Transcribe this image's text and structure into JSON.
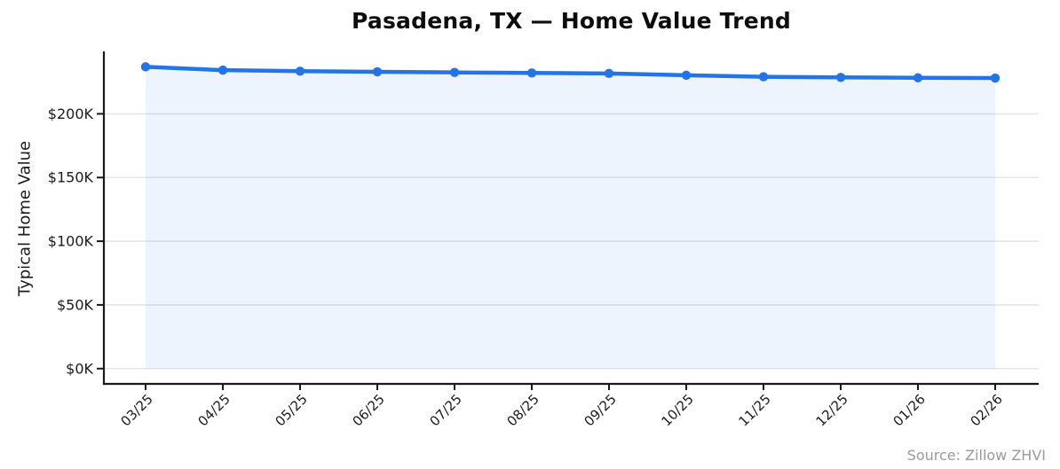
{
  "chart_data": {
    "type": "line",
    "title": "Pasadena, TX — Home Value Trend",
    "xlabel": "",
    "ylabel": "Typical Home Value",
    "categories": [
      "03/25",
      "04/25",
      "05/25",
      "06/25",
      "07/25",
      "08/25",
      "09/25",
      "10/25",
      "11/25",
      "12/25",
      "01/26",
      "02/26"
    ],
    "series": [
      {
        "name": "Typical Home Value",
        "values": [
          236900,
          234300,
          233500,
          233000,
          232500,
          232100,
          231700,
          230300,
          229100,
          228600,
          228300,
          228100
        ]
      }
    ],
    "y_ticks": [
      {
        "value": 0,
        "label": "$0K"
      },
      {
        "value": 50000,
        "label": "$50K"
      },
      {
        "value": 100000,
        "label": "$100K"
      },
      {
        "value": 150000,
        "label": "$150K"
      },
      {
        "value": 200000,
        "label": "$200K"
      }
    ],
    "ylim": [
      -12000,
      249000
    ],
    "grid": "horizontal",
    "legend_position": "none",
    "area_fill": true,
    "marker": "circle",
    "source_note": "Source: Zillow ZHVI",
    "colors": {
      "line": "#2274e8",
      "fill": "rgba(34,116,232,0.08)",
      "grid": "#e6e6e6",
      "axis": "#1a1a1a",
      "title": "#0d0d0d",
      "tick_label": "#1a1a1a",
      "source": "#9a9a9a",
      "background": "#ffffff"
    }
  }
}
